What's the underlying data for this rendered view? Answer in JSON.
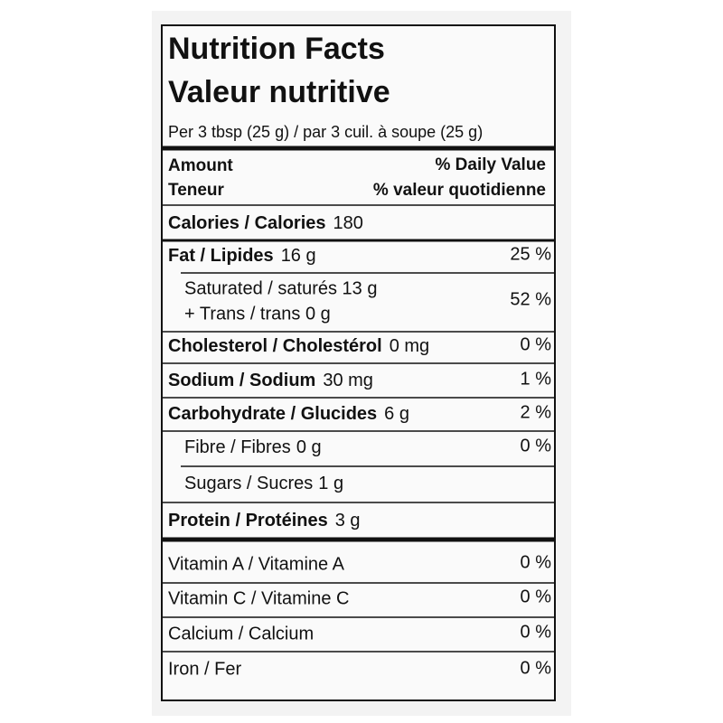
{
  "header": {
    "title": "Nutrition Facts",
    "title_fr": "Valeur nutritive",
    "serving": "Per 3 tbsp (25 g) / par 3 cuil. à soupe (25 g)"
  },
  "columns": {
    "amount": "Amount",
    "amount_fr": "Teneur",
    "daily_value": "% Daily Value",
    "daily_value_fr": "% valeur quotidienne"
  },
  "nutrients": [
    {
      "name": "Calories / Calories",
      "amount": "180"
    },
    {
      "name": "Fat / Lipides",
      "amount": "16 g",
      "daily_value": "25 %"
    },
    {
      "lines": [
        "Saturated / saturés 13 g",
        "+ Trans / trans 0 g"
      ],
      "daily_value": "52 %"
    },
    {
      "name": "Cholesterol / Cholestérol",
      "amount": "0 mg",
      "daily_value": "0 %"
    },
    {
      "name": "Sodium / Sodium",
      "amount": "30 mg",
      "daily_value": "1 %"
    },
    {
      "name": "Carbohydrate / Glucides",
      "amount": "6 g",
      "daily_value": "2 %"
    },
    {
      "name": "Fibre / Fibres",
      "amount": "0 g",
      "daily_value": "0 %"
    },
    {
      "name": "Sugars / Sucres",
      "amount": "1 g"
    },
    {
      "name": "Protein / Protéines",
      "amount": "3 g"
    }
  ],
  "vitamins": [
    {
      "name": "Vitamin A / Vitamine A",
      "daily_value": "0 %"
    },
    {
      "name": "Vitamin C / Vitamine C",
      "daily_value": "0 %"
    },
    {
      "name": "Calcium / Calcium",
      "daily_value": "0 %"
    },
    {
      "name": "Iron / Fer",
      "daily_value": "0 %"
    }
  ]
}
